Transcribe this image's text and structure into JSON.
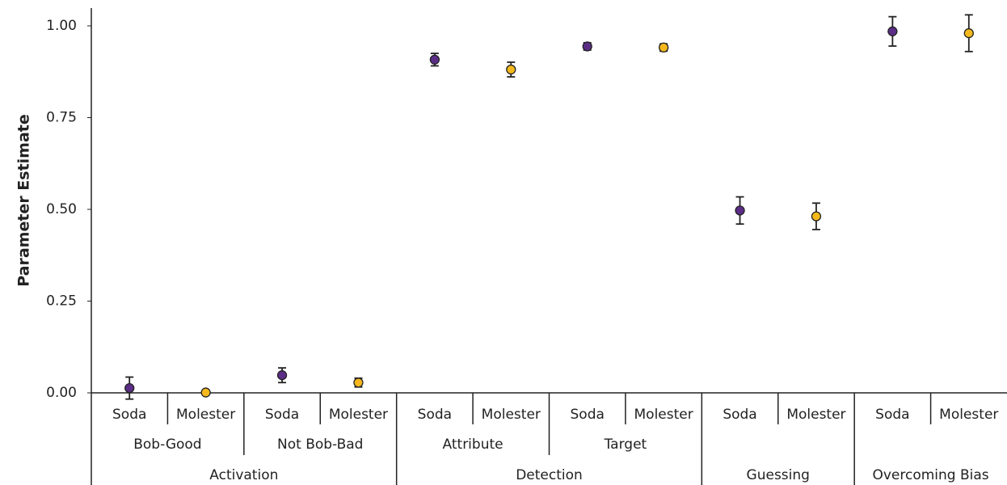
{
  "chart_data": {
    "type": "errorbar",
    "y_label": "Parameter Estimate",
    "ylim": [
      0,
      1.05
    ],
    "yticks": [
      {
        "value": 0,
        "label": "0.00"
      },
      0.25,
      {
        "value": 0.5,
        "label": "0.50"
      },
      0.75,
      {
        "value": 1,
        "label": "1.00"
      }
    ],
    "colors": [
      "#5c2d87",
      "#f4b81c"
    ],
    "groups": [
      {
        "label": "Activation",
        "subgroups": [
          {
            "label": "Bob-Good",
            "categories": [
              "Soda",
              "Molester"
            ],
            "values": [
              0.013,
              0.001
            ],
            "errors": [
              0.03,
              0
            ]
          },
          {
            "label": "Not Bob-Bad",
            "categories": [
              "Soda",
              "Molester"
            ],
            "values": [
              0.048,
              0.028
            ],
            "errors": [
              0.02,
              0.012
            ]
          }
        ]
      },
      {
        "label": "Detection",
        "subgroups": [
          {
            "label": "Attribute",
            "categories": [
              "Soda",
              "Molester"
            ],
            "values": [
              0.908,
              0.881
            ],
            "errors": [
              0.017,
              0.02
            ]
          },
          {
            "label": "Target",
            "categories": [
              "Soda",
              "Molester"
            ],
            "values": [
              0.944,
              0.941
            ],
            "errors": [
              0.01,
              0.01
            ]
          }
        ]
      },
      {
        "label": "Guessing",
        "subgroups": [
          {
            "label": null,
            "categories": [
              "Soda",
              "Molester"
            ],
            "values": [
              0.497,
              0.481
            ],
            "errors": [
              0.037,
              0.036
            ]
          }
        ]
      },
      {
        "label": "Overcoming Bias",
        "subgroups": [
          {
            "label": null,
            "categories": [
              "Soda",
              "Molester"
            ],
            "values": [
              0.985,
              0.98
            ],
            "errors": [
              0.04,
              0.05
            ]
          }
        ]
      }
    ]
  }
}
